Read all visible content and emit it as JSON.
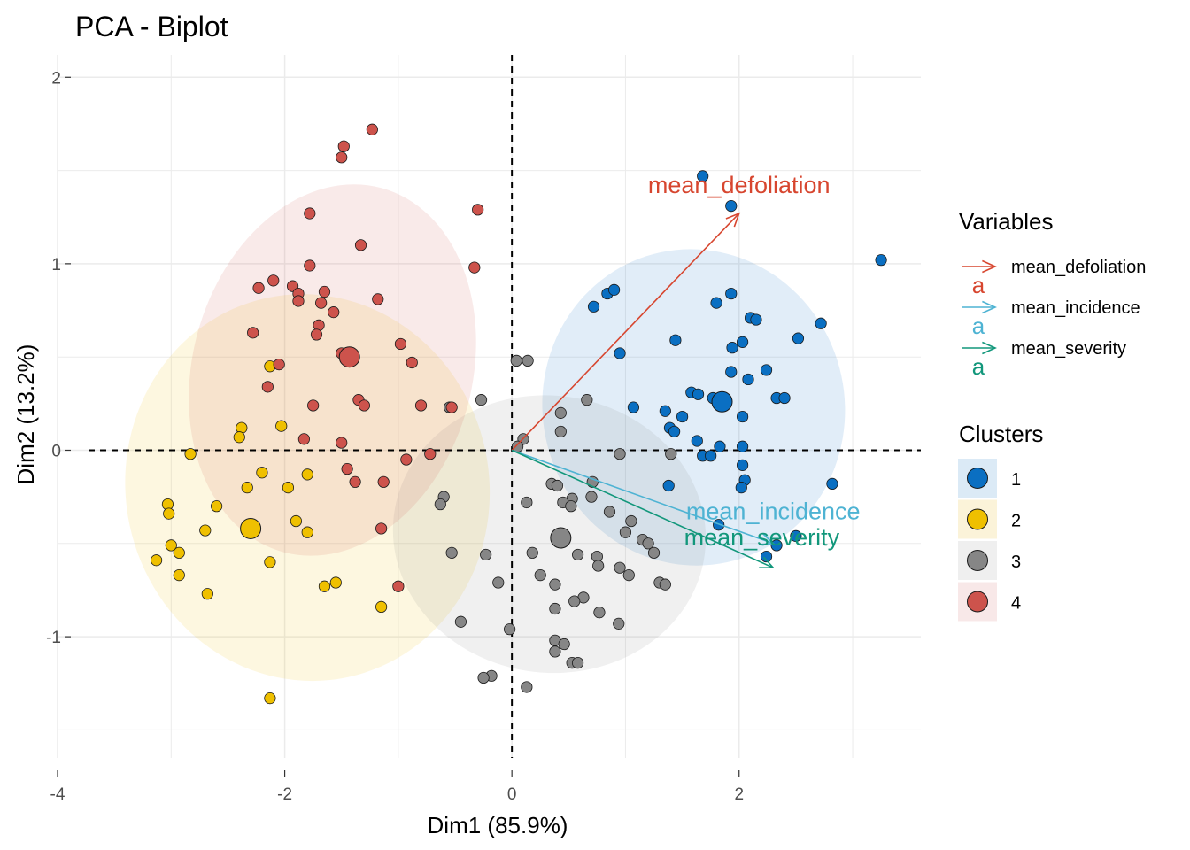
{
  "chart_data": {
    "type": "scatter",
    "title": "PCA - Biplot",
    "xlabel": "Dim1 (85.9%)",
    "ylabel": "Dim2 (13.2%)",
    "xlim": [
      -4.0,
      3.6
    ],
    "ylim": [
      -1.65,
      2.12
    ],
    "x_ticks": [
      -4,
      -2,
      0,
      2
    ],
    "y_ticks": [
      -1,
      0,
      1,
      2
    ],
    "grid": true,
    "legend_position": "right",
    "variables_legend_title": "Variables",
    "clusters_legend_title": "Clusters",
    "variables": [
      {
        "name": "mean_defoliation",
        "color": "#d7462f",
        "x": 2.0,
        "y": 1.27,
        "label_x": 2.0,
        "label_y": 1.38
      },
      {
        "name": "mean_incidence",
        "color": "#4eb3d3",
        "x": 2.3,
        "y": -0.5,
        "label_x": 2.3,
        "label_y": -0.37
      },
      {
        "name": "mean_severity",
        "color": "#12977b",
        "x": 2.3,
        "y": -0.63,
        "label_x": 2.2,
        "label_y": -0.51
      }
    ],
    "clusters": [
      {
        "name": "1",
        "color": "#0a6fc2",
        "fill": "#dbeaf6",
        "center": [
          1.85,
          0.26
        ],
        "ellipse": {
          "cx": 1.6,
          "cy": 0.23,
          "rx": 1.33,
          "ry": 0.85,
          "rot": -12
        },
        "points": [
          [
            1.68,
            1.47
          ],
          [
            1.93,
            1.31
          ],
          [
            3.25,
            1.02
          ],
          [
            0.72,
            0.77
          ],
          [
            0.84,
            0.84
          ],
          [
            0.9,
            0.86
          ],
          [
            1.93,
            0.84
          ],
          [
            1.8,
            0.79
          ],
          [
            2.1,
            0.71
          ],
          [
            2.15,
            0.7
          ],
          [
            2.72,
            0.68
          ],
          [
            2.52,
            0.6
          ],
          [
            1.44,
            0.59
          ],
          [
            2.03,
            0.58
          ],
          [
            1.94,
            0.55
          ],
          [
            0.95,
            0.52
          ],
          [
            1.93,
            0.42
          ],
          [
            2.24,
            0.43
          ],
          [
            2.08,
            0.38
          ],
          [
            1.58,
            0.31
          ],
          [
            1.64,
            0.3
          ],
          [
            1.77,
            0.28
          ],
          [
            2.33,
            0.28
          ],
          [
            2.4,
            0.28
          ],
          [
            1.07,
            0.23
          ],
          [
            1.35,
            0.21
          ],
          [
            1.5,
            0.18
          ],
          [
            2.03,
            0.18
          ],
          [
            1.39,
            0.12
          ],
          [
            1.43,
            0.1
          ],
          [
            1.63,
            0.05
          ],
          [
            1.83,
            0.02
          ],
          [
            2.03,
            0.02
          ],
          [
            1.68,
            -0.03
          ],
          [
            1.75,
            -0.03
          ],
          [
            2.03,
            -0.08
          ],
          [
            1.38,
            -0.19
          ],
          [
            2.05,
            -0.16
          ],
          [
            2.02,
            -0.2
          ],
          [
            2.82,
            -0.18
          ],
          [
            1.82,
            -0.4
          ],
          [
            2.5,
            -0.46
          ],
          [
            2.33,
            -0.51
          ],
          [
            2.24,
            -0.57
          ]
        ]
      },
      {
        "name": "2",
        "color": "#efc000",
        "fill": "#fbf3d9",
        "center": [
          -2.3,
          -0.42
        ],
        "ellipse": {
          "cx": -1.8,
          "cy": -0.2,
          "rx": 1.6,
          "ry": 1.04,
          "rot": -12
        },
        "points": [
          [
            -2.13,
            0.45
          ],
          [
            -2.03,
            0.13
          ],
          [
            -2.38,
            0.12
          ],
          [
            -2.4,
            0.07
          ],
          [
            -2.83,
            -0.02
          ],
          [
            -2.2,
            -0.12
          ],
          [
            -1.8,
            -0.13
          ],
          [
            -2.33,
            -0.2
          ],
          [
            -1.97,
            -0.2
          ],
          [
            -3.03,
            -0.29
          ],
          [
            -3.02,
            -0.34
          ],
          [
            -2.6,
            -0.3
          ],
          [
            -1.9,
            -0.38
          ],
          [
            -1.8,
            -0.44
          ],
          [
            -2.7,
            -0.43
          ],
          [
            -3.0,
            -0.51
          ],
          [
            -2.93,
            -0.55
          ],
          [
            -3.13,
            -0.59
          ],
          [
            -2.13,
            -0.6
          ],
          [
            -2.93,
            -0.67
          ],
          [
            -1.55,
            -0.71
          ],
          [
            -1.65,
            -0.73
          ],
          [
            -2.68,
            -0.77
          ],
          [
            -1.15,
            -0.84
          ],
          [
            -2.13,
            -1.33
          ]
        ]
      },
      {
        "name": "3",
        "color": "#868686",
        "fill": "#efefef",
        "center": [
          0.43,
          -0.47
        ],
        "ellipse": {
          "cx": 0.33,
          "cy": -0.45,
          "rx": 1.22,
          "ry": 0.84,
          "rot": -83
        },
        "points": [
          [
            0.04,
            0.48
          ],
          [
            0.14,
            0.48
          ],
          [
            -0.27,
            0.27
          ],
          [
            0.66,
            0.27
          ],
          [
            -0.55,
            0.23
          ],
          [
            0.43,
            0.2
          ],
          [
            0.43,
            0.1
          ],
          [
            0.1,
            0.06
          ],
          [
            0.05,
            0.02
          ],
          [
            0.95,
            -0.02
          ],
          [
            1.4,
            -0.02
          ],
          [
            0.35,
            -0.18
          ],
          [
            0.71,
            -0.17
          ],
          [
            0.4,
            -0.19
          ],
          [
            0.7,
            -0.25
          ],
          [
            0.53,
            -0.26
          ],
          [
            -0.6,
            -0.25
          ],
          [
            -0.63,
            -0.29
          ],
          [
            0.13,
            -0.28
          ],
          [
            0.45,
            -0.28
          ],
          [
            0.52,
            -0.3
          ],
          [
            0.86,
            -0.33
          ],
          [
            1.05,
            -0.38
          ],
          [
            1.0,
            -0.44
          ],
          [
            1.15,
            -0.48
          ],
          [
            1.2,
            -0.5
          ],
          [
            1.25,
            -0.55
          ],
          [
            -0.53,
            -0.55
          ],
          [
            -0.23,
            -0.56
          ],
          [
            0.18,
            -0.55
          ],
          [
            0.58,
            -0.56
          ],
          [
            0.75,
            -0.57
          ],
          [
            0.76,
            -0.62
          ],
          [
            0.95,
            -0.63
          ],
          [
            1.03,
            -0.67
          ],
          [
            0.25,
            -0.67
          ],
          [
            -0.12,
            -0.71
          ],
          [
            1.3,
            -0.71
          ],
          [
            1.35,
            -0.72
          ],
          [
            0.38,
            -0.72
          ],
          [
            0.63,
            -0.79
          ],
          [
            0.38,
            -0.85
          ],
          [
            0.55,
            -0.81
          ],
          [
            0.77,
            -0.87
          ],
          [
            -0.45,
            -0.92
          ],
          [
            0.94,
            -0.93
          ],
          [
            -0.02,
            -0.96
          ],
          [
            0.38,
            -1.02
          ],
          [
            0.38,
            -1.08
          ],
          [
            0.46,
            -1.04
          ],
          [
            0.53,
            -1.14
          ],
          [
            0.58,
            -1.14
          ],
          [
            -0.18,
            -1.21
          ],
          [
            -0.25,
            -1.22
          ],
          [
            0.13,
            -1.27
          ]
        ]
      },
      {
        "name": "4",
        "color": "#cd534c",
        "fill": "#f8e8e8",
        "center": [
          -1.43,
          0.5
        ],
        "ellipse": {
          "cx": -1.58,
          "cy": 0.43,
          "rx": 1.66,
          "ry": 0.75,
          "rot": -75
        },
        "points": [
          [
            -1.23,
            1.72
          ],
          [
            -1.48,
            1.63
          ],
          [
            -1.5,
            1.57
          ],
          [
            -0.3,
            1.29
          ],
          [
            -1.78,
            1.27
          ],
          [
            -1.33,
            1.1
          ],
          [
            -1.78,
            0.99
          ],
          [
            -0.33,
            0.98
          ],
          [
            -2.1,
            0.91
          ],
          [
            -2.23,
            0.87
          ],
          [
            -1.93,
            0.88
          ],
          [
            -1.65,
            0.85
          ],
          [
            -1.88,
            0.84
          ],
          [
            -1.88,
            0.8
          ],
          [
            -1.18,
            0.81
          ],
          [
            -1.68,
            0.79
          ],
          [
            -1.57,
            0.74
          ],
          [
            -1.7,
            0.67
          ],
          [
            -1.72,
            0.62
          ],
          [
            -2.28,
            0.63
          ],
          [
            -0.98,
            0.57
          ],
          [
            -1.5,
            0.52
          ],
          [
            -2.05,
            0.46
          ],
          [
            -0.88,
            0.47
          ],
          [
            -2.15,
            0.34
          ],
          [
            -1.35,
            0.27
          ],
          [
            -1.3,
            0.24
          ],
          [
            -1.75,
            0.24
          ],
          [
            -0.8,
            0.24
          ],
          [
            -0.53,
            0.23
          ],
          [
            -1.5,
            0.04
          ],
          [
            -1.83,
            0.06
          ],
          [
            -0.93,
            -0.05
          ],
          [
            -0.72,
            -0.02
          ],
          [
            -1.45,
            -0.1
          ],
          [
            -1.38,
            -0.17
          ],
          [
            -1.13,
            -0.17
          ],
          [
            -1.15,
            -0.42
          ],
          [
            -1.0,
            -0.73
          ]
        ]
      }
    ]
  }
}
